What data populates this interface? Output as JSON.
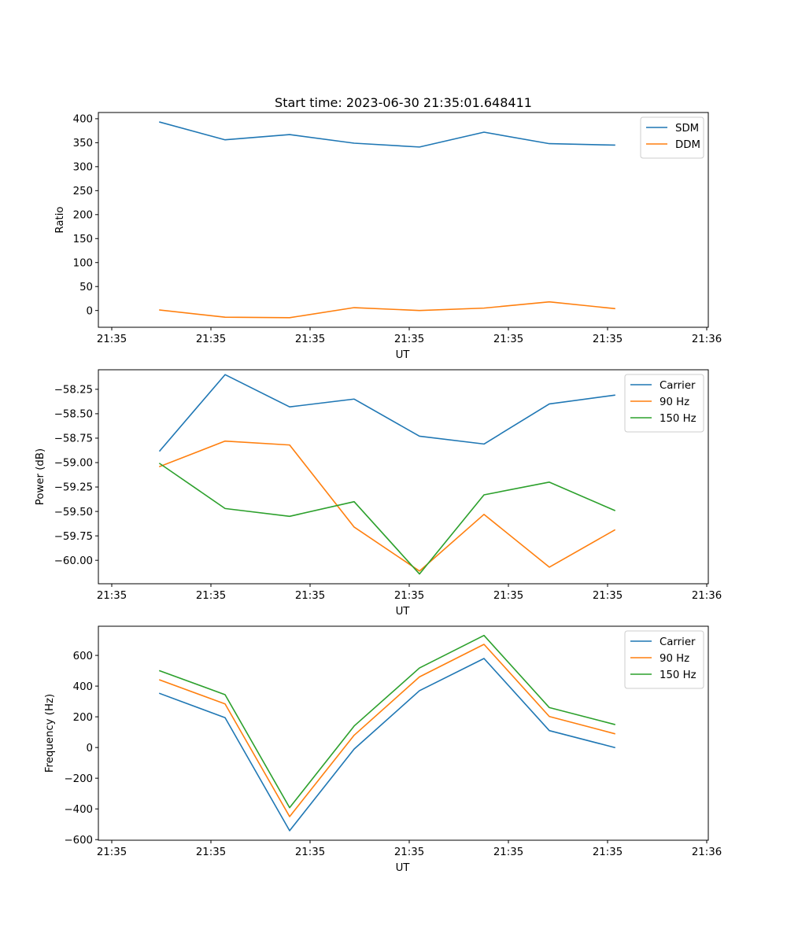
{
  "figure": {
    "title": "Start time: 2023-06-30 21:35:01.648411"
  },
  "chart_data": [
    {
      "type": "line",
      "title": "Start time: 2023-06-30 21:35:01.648411",
      "xlabel": "UT",
      "ylabel": "Ratio",
      "x_tick_labels": [
        "21:35",
        "21:35",
        "21:35",
        "21:35",
        "21:35",
        "21:35",
        "21:35"
      ],
      "x_tick_last": "21:36",
      "y_ticks": [
        0,
        50,
        100,
        150,
        200,
        250,
        300,
        350,
        400
      ],
      "y_tick_labels": [
        "0",
        "50",
        "100",
        "150",
        "200",
        "250",
        "300",
        "350",
        "400"
      ],
      "ylim": [
        -35,
        413
      ],
      "legend_position": "upper-right",
      "series": [
        {
          "name": "SDM",
          "color": "#1f77b4",
          "values": [
            393,
            356,
            367,
            349,
            341,
            372,
            348,
            345
          ]
        },
        {
          "name": "DDM",
          "color": "#ff7f0e",
          "values": [
            1,
            -14,
            -15,
            6,
            0,
            5,
            18,
            4
          ]
        }
      ]
    },
    {
      "type": "line",
      "title": "",
      "xlabel": "UT",
      "ylabel": "Power (dB)",
      "x_tick_labels": [
        "21:35",
        "21:35",
        "21:35",
        "21:35",
        "21:35",
        "21:35",
        "21:35"
      ],
      "x_tick_last": "21:36",
      "y_ticks": [
        -60.0,
        -59.75,
        -59.5,
        -59.25,
        -59.0,
        -58.75,
        -58.5,
        -58.25
      ],
      "y_tick_labels": [
        "−60.00",
        "−59.75",
        "−59.50",
        "−59.25",
        "−59.00",
        "−58.75",
        "−58.50",
        "−58.25"
      ],
      "ylim": [
        -60.24,
        -58.05
      ],
      "legend_position": "upper-right",
      "series": [
        {
          "name": "Carrier",
          "color": "#1f77b4",
          "values": [
            -58.88,
            -58.1,
            -58.43,
            -58.35,
            -58.73,
            -58.81,
            -58.4,
            -58.31
          ]
        },
        {
          "name": "90 Hz",
          "color": "#ff7f0e",
          "values": [
            -59.04,
            -58.78,
            -58.82,
            -59.66,
            -60.11,
            -59.53,
            -60.07,
            -59.69
          ]
        },
        {
          "name": "150 Hz",
          "color": "#2ca02c",
          "values": [
            -59.01,
            -59.47,
            -59.55,
            -59.4,
            -60.14,
            -59.33,
            -59.2,
            -59.49
          ]
        }
      ]
    },
    {
      "type": "line",
      "title": "",
      "xlabel": "UT",
      "ylabel": "Frequency (Hz)",
      "x_tick_labels": [
        "21:35",
        "21:35",
        "21:35",
        "21:35",
        "21:35",
        "21:35",
        "21:35"
      ],
      "x_tick_last": "21:36",
      "y_ticks": [
        -600,
        -400,
        -200,
        0,
        200,
        400,
        600
      ],
      "y_tick_labels": [
        "−600",
        "−400",
        "−200",
        "0",
        "200",
        "400",
        "600"
      ],
      "ylim": [
        -604,
        790
      ],
      "legend_position": "upper-right",
      "series": [
        {
          "name": "Carrier",
          "color": "#1f77b4",
          "values": [
            352,
            194,
            -542,
            -10,
            370,
            580,
            110,
            0
          ]
        },
        {
          "name": "90 Hz",
          "color": "#ff7f0e",
          "values": [
            440,
            284,
            -450,
            80,
            460,
            672,
            202,
            90
          ]
        },
        {
          "name": "150 Hz",
          "color": "#2ca02c",
          "values": [
            500,
            344,
            -392,
            140,
            518,
            730,
            260,
            150
          ]
        }
      ]
    }
  ]
}
